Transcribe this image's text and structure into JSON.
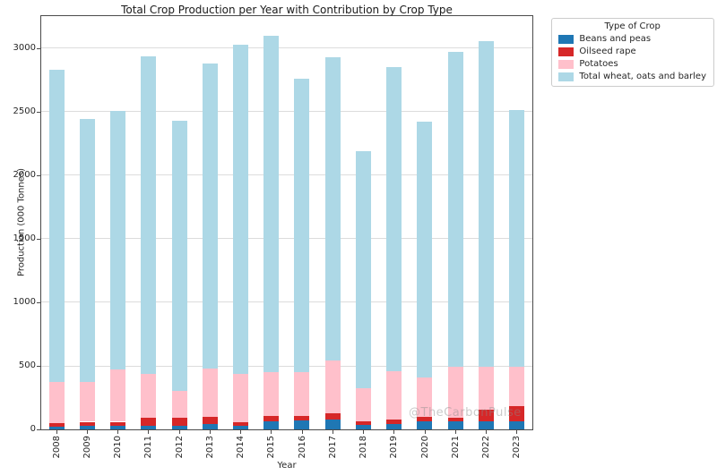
{
  "watermark": "@TheCarbonPulse",
  "chart_data": {
    "type": "bar",
    "stacked": true,
    "title": "Total Crop Production per Year with Contribution by Crop Type",
    "xlabel": "Year",
    "ylabel": "Production (000 Tonnes)",
    "legend_title": "Type of Crop",
    "legend_position": "upper right, outside axes",
    "grid": "horizontal",
    "ylim": [
      0,
      3250
    ],
    "yticks": [
      0,
      500,
      1000,
      1500,
      2000,
      2500,
      3000
    ],
    "categories": [
      "2008",
      "2009",
      "2010",
      "2011",
      "2012",
      "2013",
      "2014",
      "2015",
      "2016",
      "2017",
      "2018",
      "2019",
      "2020",
      "2021",
      "2022",
      "2023"
    ],
    "series": [
      {
        "name": "Beans and peas",
        "color": "#1f77b4",
        "values": [
          20,
          30,
          30,
          30,
          25,
          40,
          30,
          60,
          70,
          80,
          35,
          45,
          65,
          60,
          65,
          65
        ]
      },
      {
        "name": "Oilseed rape",
        "color": "#d62728",
        "values": [
          30,
          30,
          30,
          65,
          65,
          60,
          25,
          45,
          35,
          50,
          30,
          35,
          35,
          30,
          90,
          115
        ]
      },
      {
        "name": "Potatoes",
        "color": "#ffc0cb",
        "values": [
          325,
          310,
          415,
          340,
          215,
          380,
          385,
          345,
          345,
          410,
          260,
          375,
          310,
          405,
          340,
          315
        ]
      },
      {
        "name": "Total wheat, oats and barley",
        "color": "#add8e6",
        "values": [
          2455,
          2070,
          2035,
          2500,
          2125,
          2400,
          2590,
          2650,
          2310,
          2390,
          1865,
          2395,
          2010,
          2475,
          2560,
          2020
        ]
      }
    ],
    "stacked_totals": [
      2830,
      2440,
      2510,
      2935,
      2430,
      2880,
      3030,
      3100,
      2760,
      2930,
      2190,
      2850,
      2420,
      2970,
      3055,
      2515
    ]
  }
}
